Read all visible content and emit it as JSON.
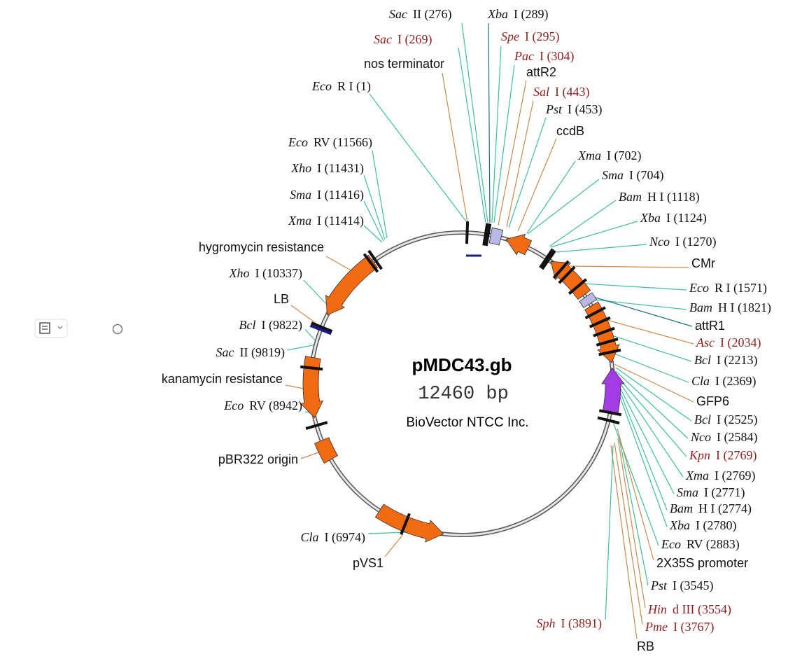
{
  "map": {
    "title": "pMDC43.gb",
    "size": "12460 bp",
    "company": "BioVector NTCC Inc."
  },
  "labels": [
    {
      "enzyme": "Sac",
      "site": "II (276)"
    },
    {
      "enzyme": "Xba",
      "site": "I (289)"
    },
    {
      "enzyme": "Sac",
      "site": "I (269)",
      "color": "#8e1f1f"
    },
    {
      "enzyme": "Spe",
      "site": "I (295)",
      "color": "#8e1f1f"
    },
    {
      "enzyme": "Pac",
      "site": "I (304)",
      "color": "#8e1f1f"
    },
    {
      "feature": "attR2"
    },
    {
      "enzyme": "Sal",
      "site": "I (443)",
      "color": "#8e1f1f"
    },
    {
      "enzyme": "Pst",
      "site": "I (453)"
    },
    {
      "feature": "ccdB"
    },
    {
      "enzyme": "Xma",
      "site": "I (702)"
    },
    {
      "enzyme": "Sma",
      "site": "I (704)"
    },
    {
      "enzyme": "Bam",
      "site": "H I (1118)"
    },
    {
      "enzyme": "Xba",
      "site": "I (1124)"
    },
    {
      "enzyme": "Nco",
      "site": "I (1270)"
    },
    {
      "feature": "CMr"
    },
    {
      "enzyme": "Eco",
      "site": "R I (1571)"
    },
    {
      "enzyme": "Bam",
      "site": "H I (1821)"
    },
    {
      "feature": "attR1"
    },
    {
      "enzyme": "Asc",
      "site": "I (2034)",
      "color": "#8e1f1f"
    },
    {
      "enzyme": "Bcl",
      "site": "I (2213)"
    },
    {
      "enzyme": "Cla",
      "site": "I (2369)"
    },
    {
      "feature": "GFP6"
    },
    {
      "enzyme": "Bcl",
      "site": "I (2525)"
    },
    {
      "enzyme": "Nco",
      "site": "I (2584)"
    },
    {
      "enzyme": "Kpn",
      "site": "I (2769)",
      "color": "#8e1f1f"
    },
    {
      "enzyme": "Xma",
      "site": "I (2769)"
    },
    {
      "enzyme": "Sma",
      "site": "I (2771)"
    },
    {
      "enzyme": "Bam",
      "site": "H I (2774)"
    },
    {
      "enzyme": "Xba",
      "site": "I (2780)"
    },
    {
      "enzyme": "Eco",
      "site": "RV (2883)"
    },
    {
      "feature": "2X35S promoter"
    },
    {
      "enzyme": "Pst",
      "site": "I (3545)"
    },
    {
      "enzyme": "Hin",
      "site": "d III (3554)",
      "color": "#8e1f1f"
    },
    {
      "enzyme": "Pme",
      "site": "I (3767)",
      "color": "#8e1f1f"
    },
    {
      "feature": "RB"
    },
    {
      "enzyme": "Sph",
      "site": "I (3891)",
      "color": "#8e1f1f"
    },
    {
      "feature": "nos terminator"
    },
    {
      "enzyme": "Eco",
      "site": "R I (1)"
    },
    {
      "enzyme": "Eco",
      "site": "RV (11566)"
    },
    {
      "enzyme": "Xho",
      "site": "I (11431)"
    },
    {
      "enzyme": "Sma",
      "site": "I (11416)"
    },
    {
      "enzyme": "Xma",
      "site": "I (11414)"
    },
    {
      "feature": "hygromycin resistance"
    },
    {
      "enzyme": "Xho",
      "site": "I (10337)"
    },
    {
      "feature": "LB"
    },
    {
      "enzyme": "Bcl",
      "site": "I (9822)"
    },
    {
      "enzyme": "Sac",
      "site": "II (9819)"
    },
    {
      "feature": "kanamycin resistance"
    },
    {
      "enzyme": "Eco",
      "site": "RV (8942)"
    },
    {
      "feature": "pBR322 origin"
    },
    {
      "enzyme": "Cla",
      "site": "I (6974)"
    },
    {
      "feature": "pVS1"
    }
  ]
}
